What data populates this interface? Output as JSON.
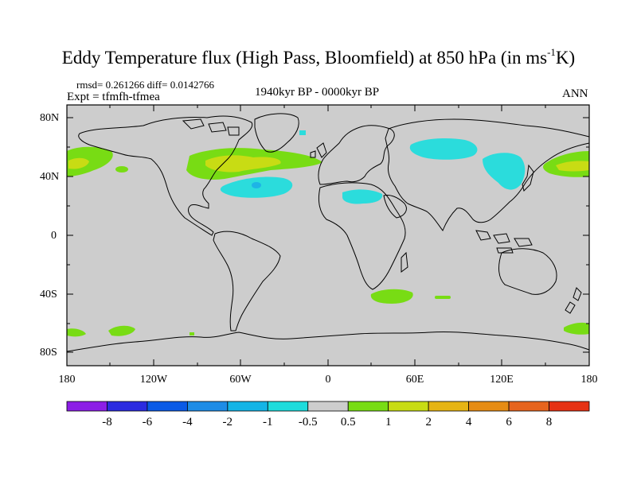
{
  "title": {
    "main": "Eddy Temperature flux (High Pass, Bloomfield) at 850 hPa (in ms",
    "sup": "-1",
    "end": "K)"
  },
  "stats": "rmsd= 0.261266 diff= 0.0142766",
  "expt": "Expt = tfmfh-tfmea",
  "period": "1940kyr BP - 0000kyr BP",
  "season": "ANN",
  "lat_labels": [
    "80N",
    "40N",
    "0",
    "40S",
    "80S"
  ],
  "lon_labels": [
    "180",
    "120W",
    "60W",
    "0",
    "60E",
    "120E",
    "180"
  ],
  "colorbar": {
    "labels": [
      "-8",
      "-6",
      "-4",
      "-2",
      "-1",
      "-0.5",
      "0.5",
      "1",
      "2",
      "4",
      "6",
      "8"
    ],
    "colors": [
      "#8c1ee6",
      "#2b2be0",
      "#0a5ae6",
      "#1e8ce6",
      "#14b4e6",
      "#1edcdc",
      "#cdcdcd",
      "#78dc14",
      "#c8dc14",
      "#e6b414",
      "#e68c14",
      "#e6641e",
      "#e63214"
    ]
  },
  "colors": {
    "land_ocean_bg": "#cdcdcd",
    "neg_anomaly": "#2bdcdc",
    "neg_anomaly_strong": "#1eb4e6",
    "pos_anomaly": "#78dc14",
    "pos_anomaly_strong": "#c8dc14"
  }
}
